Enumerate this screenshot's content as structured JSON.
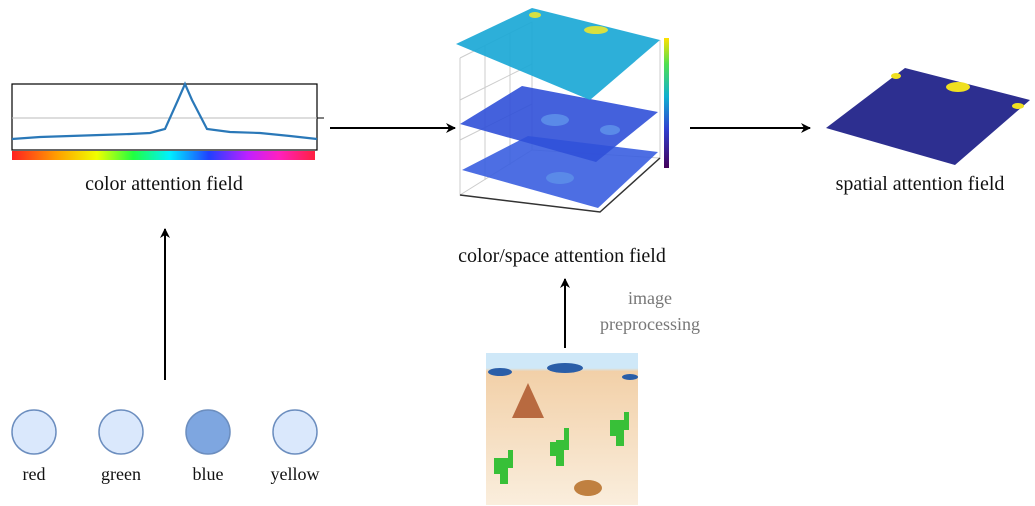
{
  "color_field": {
    "label": "color attention field"
  },
  "space_field": {
    "label": "color/space attention field"
  },
  "spatial_field": {
    "label": "spatial attention field"
  },
  "preprocessing": {
    "lines": [
      "image",
      "preprocessing"
    ]
  },
  "nodes": [
    {
      "label": "red"
    },
    {
      "label": "green"
    },
    {
      "label": "blue"
    },
    {
      "label": "yellow"
    }
  ]
}
